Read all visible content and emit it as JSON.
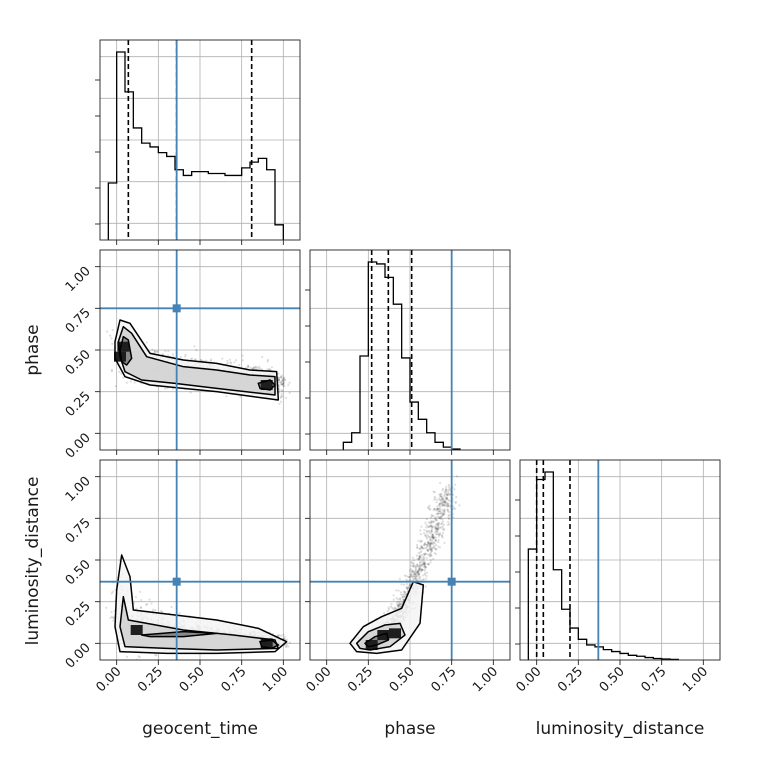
{
  "chart_data": {
    "type": "corner",
    "parameters": [
      "geocent_time",
      "phase",
      "luminosity_distance"
    ],
    "axis_labels": {
      "geocent_time": "geocent_time",
      "phase": "phase",
      "luminosity_distance": "luminosity_distance"
    },
    "axis_range": [
      -0.1,
      1.1
    ],
    "ticks": [
      "0.00",
      "0.25",
      "0.50",
      "0.75",
      "1.00"
    ],
    "tick_values": [
      0,
      0.25,
      0.5,
      0.75,
      1.0
    ],
    "grid": true,
    "truth_color": "#4682b4",
    "truths": {
      "geocent_time": 0.36,
      "phase": 0.75,
      "luminosity_distance": 0.37
    },
    "quantiles": {
      "geocent_time": [
        0.07,
        0.36,
        0.81
      ],
      "phase": [
        0.27,
        0.37,
        0.51
      ],
      "luminosity_distance": [
        0.0,
        0.04,
        0.2
      ]
    },
    "histograms": {
      "geocent_time": {
        "bin_edges": [
          -0.05,
          0.0,
          0.05,
          0.1,
          0.15,
          0.2,
          0.25,
          0.3,
          0.35,
          0.4,
          0.45,
          0.5,
          0.55,
          0.6,
          0.65,
          0.7,
          0.75,
          0.8,
          0.85,
          0.9,
          0.95,
          1.0
        ],
        "counts": [
          0.3,
          0.99,
          0.78,
          0.59,
          0.51,
          0.49,
          0.46,
          0.44,
          0.37,
          0.34,
          0.36,
          0.36,
          0.35,
          0.35,
          0.34,
          0.34,
          0.38,
          0.41,
          0.43,
          0.37,
          0.08
        ]
      },
      "phase": {
        "bin_edges": [
          0.1,
          0.15,
          0.2,
          0.25,
          0.3,
          0.35,
          0.4,
          0.45,
          0.5,
          0.55,
          0.6,
          0.65,
          0.7,
          0.75,
          0.8
        ],
        "counts": [
          0.04,
          0.09,
          0.49,
          0.98,
          0.97,
          0.9,
          0.76,
          0.48,
          0.25,
          0.16,
          0.09,
          0.04,
          0.015,
          0.005
        ]
      },
      "luminosity_distance": {
        "bin_edges": [
          -0.05,
          0.0,
          0.05,
          0.1,
          0.15,
          0.2,
          0.25,
          0.3,
          0.35,
          0.4,
          0.45,
          0.5,
          0.55,
          0.6,
          0.65,
          0.7,
          0.75,
          0.8,
          0.85
        ],
        "counts": [
          0.59,
          0.96,
          1.0,
          0.48,
          0.27,
          0.17,
          0.11,
          0.08,
          0.07,
          0.055,
          0.045,
          0.035,
          0.025,
          0.02,
          0.013,
          0.008,
          0.005,
          0.003
        ]
      }
    },
    "scatter_density": {
      "phase_vs_geocent_time": {
        "x": "geocent_time",
        "y": "phase",
        "trend_x": [
          0.0,
          0.1,
          0.2,
          0.3,
          0.4,
          0.5,
          0.6,
          0.7,
          0.8,
          0.9,
          1.0
        ],
        "trend_y": [
          0.52,
          0.44,
          0.4,
          0.38,
          0.37,
          0.36,
          0.35,
          0.34,
          0.33,
          0.31,
          0.29
        ],
        "trend_spread": [
          0.1,
          0.09,
          0.08,
          0.07,
          0.07,
          0.07,
          0.07,
          0.07,
          0.07,
          0.07,
          0.06
        ],
        "contour_outer": [
          [
            -0.01,
            0.55
          ],
          [
            0.02,
            0.68
          ],
          [
            0.08,
            0.66
          ],
          [
            0.2,
            0.48
          ],
          [
            0.4,
            0.44
          ],
          [
            0.6,
            0.42
          ],
          [
            0.8,
            0.38
          ],
          [
            0.96,
            0.37
          ],
          [
            0.97,
            0.2
          ],
          [
            0.6,
            0.25
          ],
          [
            0.4,
            0.27
          ],
          [
            0.2,
            0.29
          ],
          [
            0.05,
            0.34
          ],
          [
            -0.01,
            0.45
          ]
        ],
        "contour_mid": [
          [
            0.01,
            0.55
          ],
          [
            0.04,
            0.64
          ],
          [
            0.09,
            0.6
          ],
          [
            0.18,
            0.46
          ],
          [
            0.4,
            0.4
          ],
          [
            0.6,
            0.38
          ],
          [
            0.8,
            0.35
          ],
          [
            0.95,
            0.34
          ],
          [
            0.95,
            0.23
          ],
          [
            0.6,
            0.27
          ],
          [
            0.35,
            0.3
          ],
          [
            0.15,
            0.32
          ],
          [
            0.05,
            0.37
          ],
          [
            0.02,
            0.46
          ]
        ],
        "contour_inner": [
          [
            0.02,
            0.5
          ],
          [
            0.04,
            0.58
          ],
          [
            0.07,
            0.56
          ],
          [
            0.09,
            0.45
          ],
          [
            0.06,
            0.41
          ],
          [
            0.03,
            0.43
          ]
        ],
        "contour_inner_right": [
          [
            0.85,
            0.3
          ],
          [
            0.92,
            0.32
          ],
          [
            0.95,
            0.29
          ],
          [
            0.92,
            0.26
          ],
          [
            0.86,
            0.27
          ]
        ],
        "dense_blocks": [
          [
            0.02,
            0.46
          ],
          [
            0.04,
            0.52
          ],
          [
            0.9,
            0.29
          ]
        ]
      },
      "luminosity_distance_vs_geocent_time": {
        "x": "geocent_time",
        "y": "luminosity_distance",
        "trend_x": [
          0.0,
          0.1,
          0.2,
          0.3,
          0.4,
          0.5,
          0.6,
          0.7,
          0.8,
          0.9,
          1.0
        ],
        "trend_y": [
          0.18,
          0.1,
          0.08,
          0.07,
          0.06,
          0.05,
          0.05,
          0.04,
          0.03,
          0.02,
          0.01
        ],
        "trend_spread": [
          0.2,
          0.12,
          0.09,
          0.07,
          0.06,
          0.05,
          0.05,
          0.04,
          0.04,
          0.03,
          0.03
        ],
        "contour_outer": [
          [
            0.0,
            0.32
          ],
          [
            0.03,
            0.53
          ],
          [
            0.08,
            0.4
          ],
          [
            0.1,
            0.2
          ],
          [
            0.35,
            0.17
          ],
          [
            0.6,
            0.14
          ],
          [
            0.85,
            0.09
          ],
          [
            1.02,
            0.01
          ],
          [
            0.95,
            -0.05
          ],
          [
            0.6,
            -0.06
          ],
          [
            0.3,
            -0.06
          ],
          [
            0.02,
            -0.05
          ],
          [
            -0.01,
            0.1
          ]
        ],
        "contour_mid": [
          [
            0.02,
            0.1
          ],
          [
            0.04,
            0.28
          ],
          [
            0.07,
            0.14
          ],
          [
            0.4,
            0.08
          ],
          [
            0.7,
            0.05
          ],
          [
            0.95,
            0.02
          ],
          [
            0.97,
            -0.03
          ],
          [
            0.6,
            -0.04
          ],
          [
            0.3,
            -0.03
          ],
          [
            0.05,
            -0.02
          ]
        ],
        "contour_inner": [
          [
            0.15,
            0.05
          ],
          [
            0.4,
            0.07
          ],
          [
            0.6,
            0.06
          ],
          [
            0.4,
            0.04
          ],
          [
            0.2,
            0.04
          ]
        ],
        "contour_inner_right": [
          [
            0.86,
            0.01
          ],
          [
            0.93,
            0.02
          ],
          [
            0.97,
            -0.01
          ],
          [
            0.93,
            -0.03
          ],
          [
            0.87,
            -0.02
          ]
        ],
        "dense_blocks": [
          [
            0.9,
            0.0
          ],
          [
            0.12,
            0.08
          ]
        ]
      },
      "luminosity_distance_vs_phase": {
        "x": "phase",
        "y": "luminosity_distance",
        "trend_x": [
          0.2,
          0.25,
          0.3,
          0.35,
          0.4,
          0.45,
          0.5,
          0.55,
          0.6,
          0.65,
          0.7,
          0.75
        ],
        "trend_y": [
          0.0,
          0.02,
          0.04,
          0.07,
          0.12,
          0.2,
          0.3,
          0.42,
          0.56,
          0.7,
          0.82,
          0.9
        ],
        "trend_spread": [
          0.03,
          0.04,
          0.05,
          0.06,
          0.07,
          0.08,
          0.09,
          0.1,
          0.1,
          0.1,
          0.1,
          0.1
        ],
        "contour_outer": [
          [
            0.14,
            0.0
          ],
          [
            0.22,
            0.1
          ],
          [
            0.33,
            0.16
          ],
          [
            0.45,
            0.21
          ],
          [
            0.52,
            0.37
          ],
          [
            0.58,
            0.35
          ],
          [
            0.56,
            0.12
          ],
          [
            0.45,
            -0.04
          ],
          [
            0.3,
            -0.06
          ],
          [
            0.18,
            -0.05
          ]
        ],
        "contour_mid": [
          [
            0.18,
            0.0
          ],
          [
            0.25,
            0.07
          ],
          [
            0.35,
            0.11
          ],
          [
            0.44,
            0.12
          ],
          [
            0.47,
            0.05
          ],
          [
            0.38,
            -0.02
          ],
          [
            0.26,
            -0.04
          ],
          [
            0.2,
            -0.03
          ]
        ],
        "contour_inner": [
          [
            0.23,
            0.0
          ],
          [
            0.29,
            0.04
          ],
          [
            0.36,
            0.06
          ],
          [
            0.37,
            0.02
          ],
          [
            0.3,
            -0.01
          ],
          [
            0.25,
            -0.02
          ]
        ],
        "contour_inner_right": [],
        "dense_blocks": [
          [
            0.27,
            -0.01
          ],
          [
            0.34,
            0.05
          ],
          [
            0.41,
            0.06
          ]
        ]
      }
    }
  }
}
